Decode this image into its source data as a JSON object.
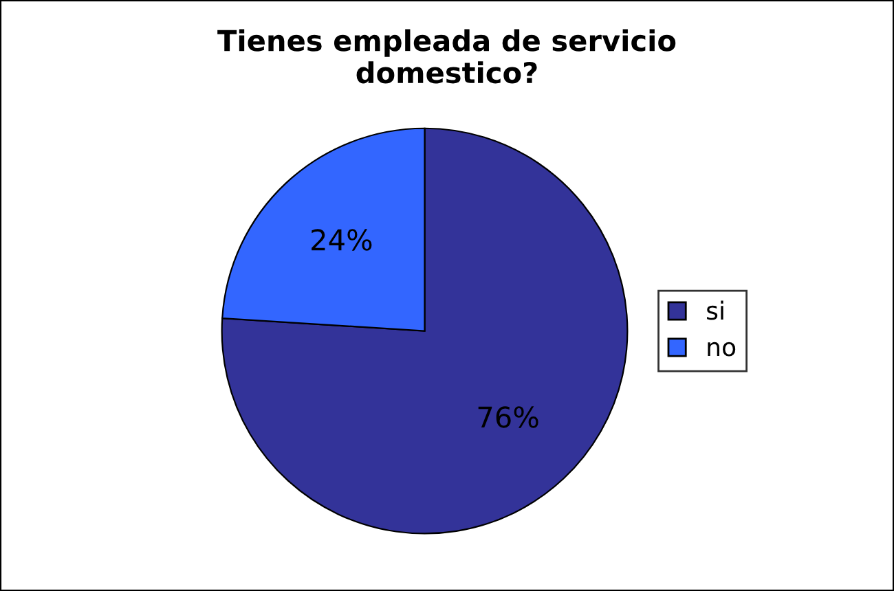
{
  "chart_data": {
    "type": "pie",
    "title": "Tienes empleada de servicio\ndomestico?",
    "categories": [
      "si",
      "no"
    ],
    "values": [
      76,
      24
    ],
    "colors": [
      "#333399",
      "#3366ff"
    ],
    "value_labels": [
      "76%",
      "24%"
    ],
    "legend": "right"
  }
}
